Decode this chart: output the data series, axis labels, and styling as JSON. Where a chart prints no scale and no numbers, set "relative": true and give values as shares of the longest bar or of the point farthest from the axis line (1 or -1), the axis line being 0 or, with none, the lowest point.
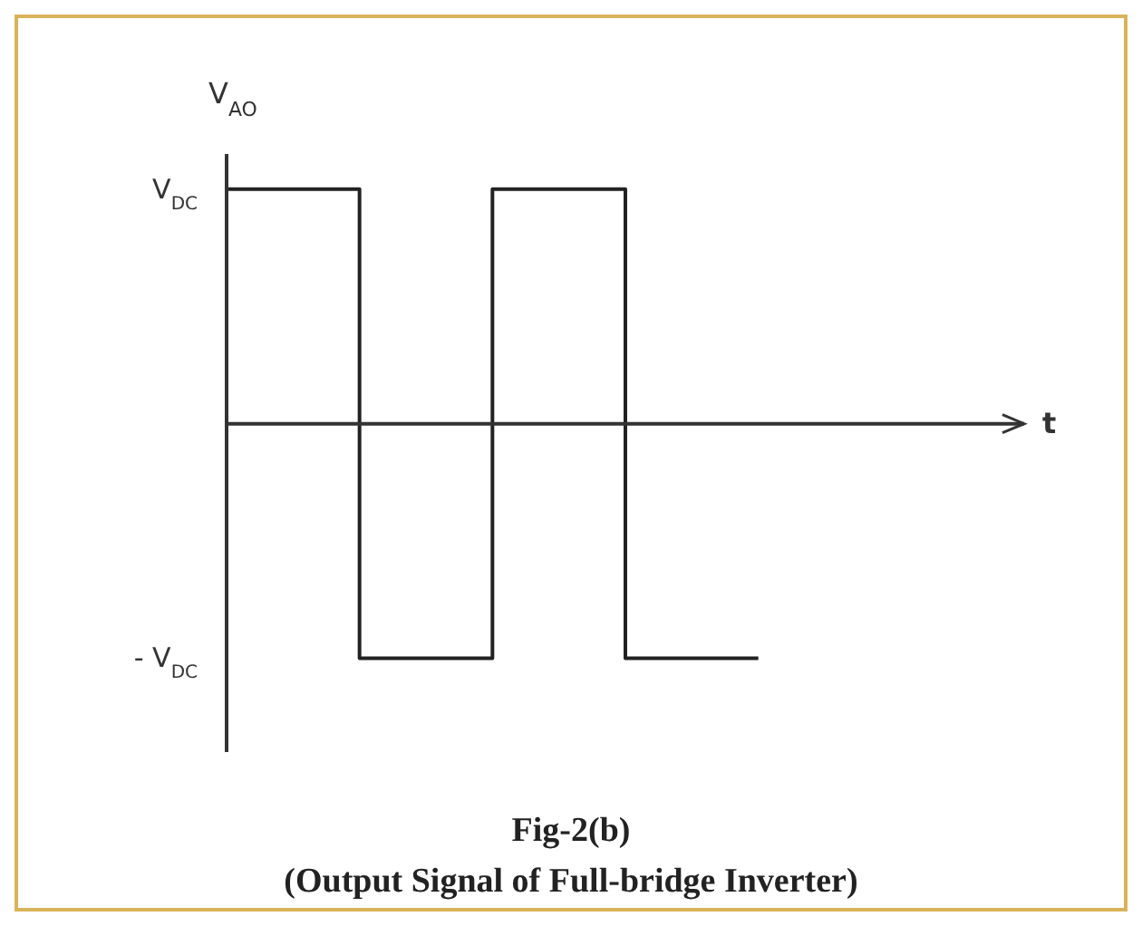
{
  "chart_data": {
    "type": "step",
    "ylabel": "V$_{AO}$",
    "categories": [
      null,
      null,
      null,
      null,
      null
    ],
    "series": [
      {
        "color": "#222222",
        "values": [
          1,
          -1,
          1,
          -1,
          -1
        ]
      }
    ],
    "relative": true,
    "marker": "none",
    "annotations": [
      "V$_{DC}$",
      "- V$_{DC}$",
      "t",
      "Fig-2(b)",
      "(Output Signal of Full-bridge Inverter)"
    ]
  }
}
